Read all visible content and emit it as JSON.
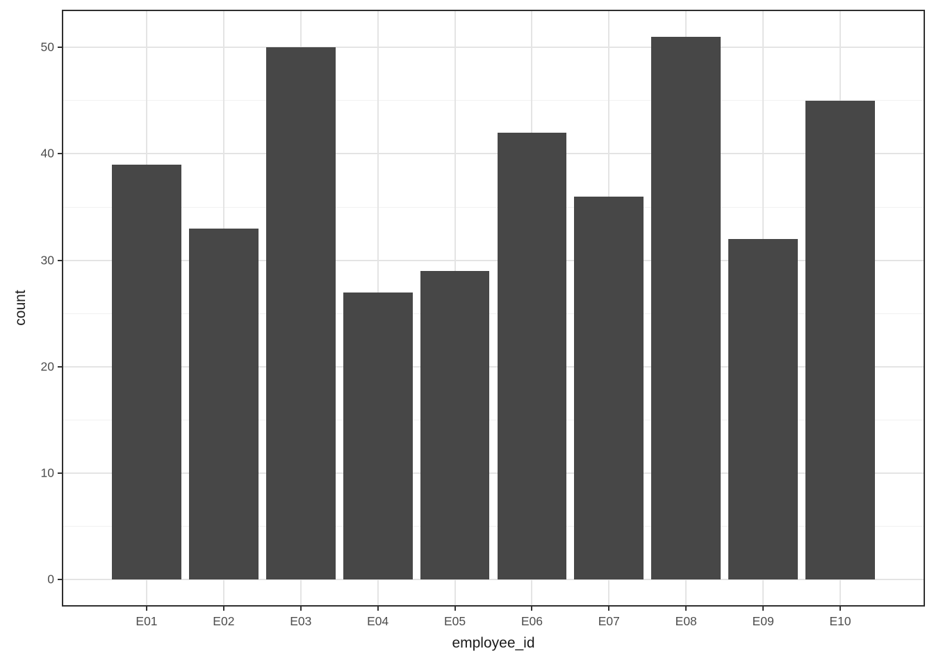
{
  "chart_data": {
    "type": "bar",
    "title": "",
    "xlabel": "employee_id",
    "ylabel": "count",
    "categories": [
      "E01",
      "E02",
      "E03",
      "E04",
      "E05",
      "E06",
      "E07",
      "E08",
      "E09",
      "E10"
    ],
    "values": [
      39,
      33,
      50,
      27,
      29,
      42,
      36,
      51,
      32,
      45
    ],
    "ylim": [
      -2.55,
      53.55
    ],
    "y_major_ticks": [
      0,
      10,
      20,
      30,
      40,
      50
    ],
    "y_minor_ticks": [
      5,
      15,
      25,
      35,
      45
    ],
    "bar_width_fraction": 0.9,
    "x_edge_padding_slots": 0.6,
    "grid": "horizontal major+minor, vertical major at category centers",
    "legend_position": "none",
    "colors": {
      "bar_fill": "#474747",
      "panel_border": "#2F2F2F",
      "grid_major": "#E4E4E4",
      "grid_minor": "#F1F1F1",
      "tick_mark": "#333333",
      "tick_label": "#4D4D4D",
      "axis_title": "#1A1A1A",
      "background": "#FFFFFF"
    }
  }
}
